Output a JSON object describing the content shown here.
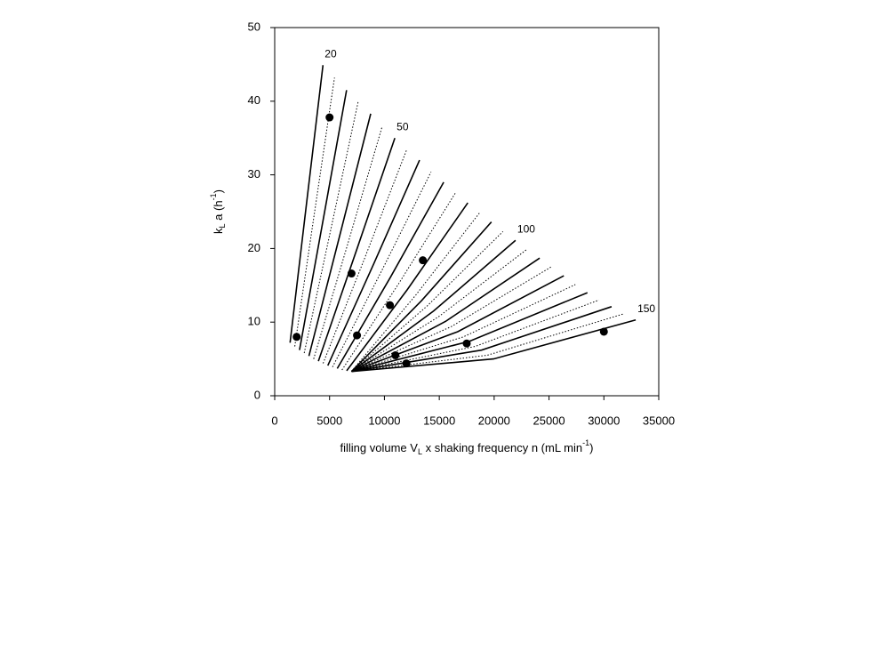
{
  "chart_data": {
    "type": "line",
    "x_label": [
      "filling volume V",
      "L",
      " x shaking frequency n (mL min",
      "-1",
      ")"
    ],
    "y_label": [
      "k",
      "L",
      " a (h",
      "-1",
      ")"
    ],
    "xlim": [
      0,
      35000
    ],
    "xticks": [
      0,
      5000,
      10000,
      15000,
      20000,
      25000,
      30000,
      35000
    ],
    "ylim": [
      0,
      50
    ],
    "yticks": [
      0,
      10,
      20,
      30,
      40,
      50
    ],
    "series": [
      {
        "name": "20",
        "style": "solid",
        "x": [
          1400,
          2900,
          4400
        ],
        "values": [
          7.2,
          26.1,
          44.9
        ]
      },
      {
        "style": "dotted",
        "x": [
          1830,
          3640,
          5450
        ],
        "values": [
          6.7,
          25.0,
          43.2
        ]
      },
      {
        "style": "solid",
        "x": [
          2260,
          4405,
          6550
        ],
        "values": [
          6.2,
          23.8,
          41.5
        ]
      },
      {
        "style": "dotted",
        "x": [
          2690,
          5145,
          7600
        ],
        "values": [
          5.8,
          22.8,
          39.9
        ]
      },
      {
        "style": "solid",
        "x": [
          3120,
          5935,
          8750
        ],
        "values": [
          5.4,
          21.8,
          38.3
        ]
      },
      {
        "style": "dotted",
        "x": [
          3550,
          6675,
          9800
        ],
        "values": [
          5.0,
          20.7,
          36.6
        ]
      },
      {
        "name": "50",
        "style": "solid",
        "x": [
          3980,
          7465,
          10950
        ],
        "values": [
          4.7,
          19.8,
          35.0
        ]
      },
      {
        "style": "dotted",
        "x": [
          4410,
          8230,
          12050
        ],
        "values": [
          4.4,
          18.8,
          33.5
        ]
      },
      {
        "style": "solid",
        "x": [
          4840,
          9020,
          13200
        ],
        "values": [
          4.1,
          17.9,
          32.0
        ]
      },
      {
        "style": "dotted",
        "x": [
          5270,
          9760,
          14250
        ],
        "values": [
          3.9,
          17.0,
          30.4
        ]
      },
      {
        "style": "solid",
        "x": [
          5700,
          10550,
          15400
        ],
        "values": [
          3.7,
          16.1,
          29.0
        ]
      },
      {
        "style": "dotted",
        "x": [
          6130,
          11290,
          16450
        ],
        "values": [
          3.5,
          15.2,
          27.5
        ]
      },
      {
        "style": "solid",
        "x": [
          6560,
          12080,
          17600
        ],
        "values": [
          3.4,
          14.4,
          26.2
        ]
      },
      {
        "style": "dotted",
        "x": [
          6990,
          12820,
          18650
        ],
        "values": [
          3.3,
          13.6,
          24.8
        ]
      },
      {
        "style": "solid",
        "x": [
          7000,
          13375,
          19750
        ],
        "values": [
          3.3,
          12.9,
          23.6
        ]
      },
      {
        "style": "dotted",
        "x": [
          7000,
          13900,
          20800
        ],
        "values": [
          3.3,
          12.2,
          22.3
        ]
      },
      {
        "name": "100",
        "style": "solid",
        "x": [
          7000,
          14475,
          21950
        ],
        "values": [
          3.3,
          11.5,
          21.1
        ]
      },
      {
        "style": "dotted",
        "x": [
          7000,
          15000,
          23000
        ],
        "values": [
          3.3,
          10.8,
          19.9
        ]
      },
      {
        "style": "solid",
        "x": [
          7000,
          15575,
          24150
        ],
        "values": [
          3.3,
          10.1,
          18.7
        ]
      },
      {
        "style": "dotted",
        "x": [
          7000,
          16100,
          25200
        ],
        "values": [
          3.3,
          9.4,
          17.5
        ]
      },
      {
        "style": "solid",
        "x": [
          7000,
          16675,
          26350
        ],
        "values": [
          3.3,
          8.7,
          16.3
        ]
      },
      {
        "style": "dotted",
        "x": [
          7000,
          17200,
          27400
        ],
        "values": [
          3.3,
          8.0,
          15.1
        ]
      },
      {
        "style": "solid",
        "x": [
          7000,
          17750,
          28500
        ],
        "values": [
          3.3,
          7.4,
          14.0
        ]
      },
      {
        "style": "dotted",
        "x": [
          7000,
          18275,
          29550
        ],
        "values": [
          3.3,
          6.7,
          13.0
        ]
      },
      {
        "style": "solid",
        "x": [
          7000,
          18850,
          30700
        ],
        "values": [
          3.3,
          6.2,
          12.1
        ]
      },
      {
        "style": "dotted",
        "x": [
          7000,
          19375,
          31750
        ],
        "values": [
          3.3,
          5.5,
          11.1
        ]
      },
      {
        "name": "150",
        "style": "solid",
        "x": [
          7000,
          19950,
          32900
        ],
        "values": [
          3.3,
          5.0,
          10.3
        ]
      }
    ],
    "line_color": "#000000",
    "scatter": {
      "color": "#000000",
      "x": [
        2000,
        5000,
        7000,
        7500,
        10500,
        11000,
        12000,
        13500,
        17500,
        30000
      ],
      "values": [
        8.0,
        37.8,
        16.6,
        8.2,
        12.3,
        5.5,
        4.4,
        18.4,
        7.1,
        8.7
      ]
    }
  }
}
